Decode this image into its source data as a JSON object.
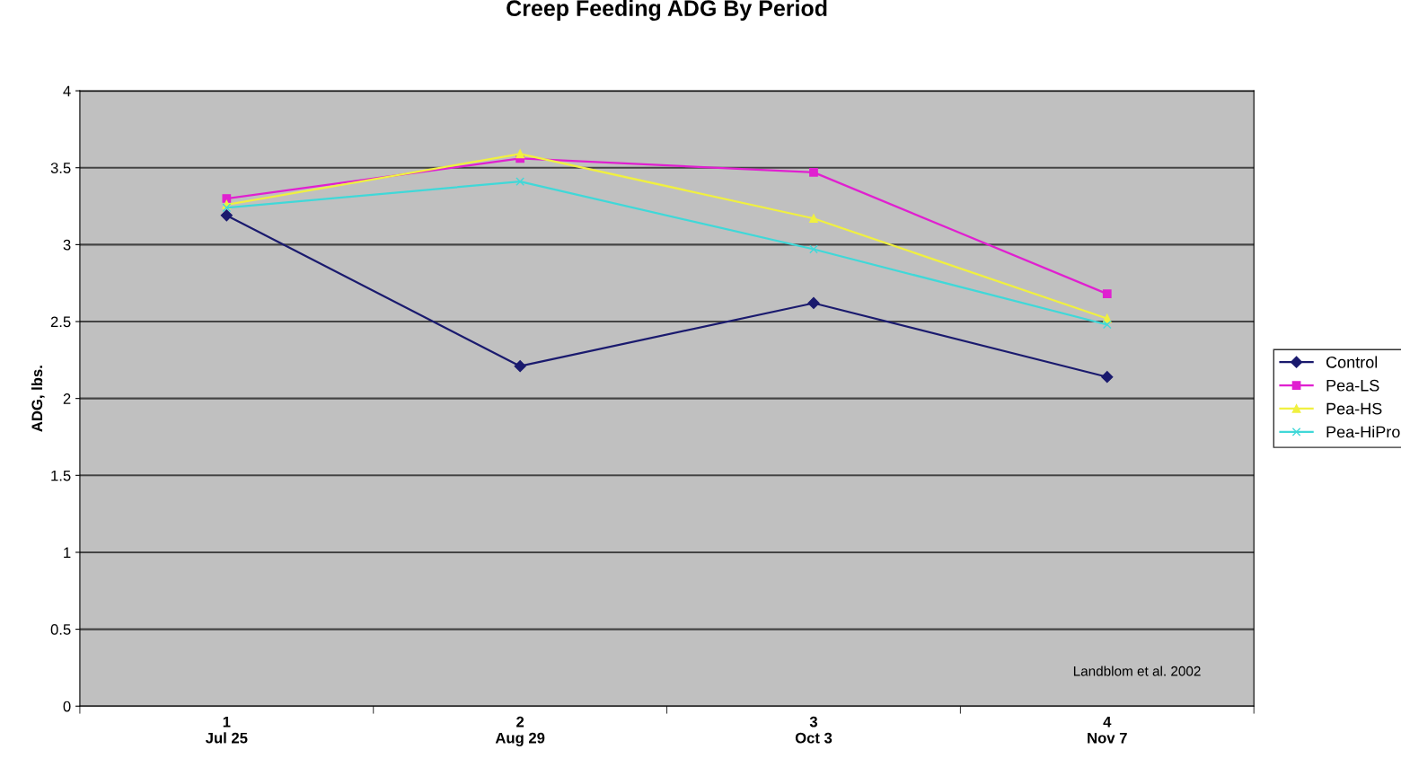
{
  "chart_data": {
    "type": "line",
    "title": "Creep Feeding ADG By Period",
    "ylabel": "ADG, lbs.",
    "categories": [
      "1\nJul 25",
      "2\nAug 29",
      "3\nOct 3",
      "4\nNov 7"
    ],
    "series": [
      {
        "name": "Control",
        "color": "#1a1a6e",
        "marker": "diamond",
        "values": [
          3.19,
          2.21,
          2.62,
          2.14
        ]
      },
      {
        "name": "Pea-LS",
        "color": "#e020d0",
        "marker": "square",
        "values": [
          3.3,
          3.56,
          3.47,
          2.68
        ]
      },
      {
        "name": "Pea-HS",
        "color": "#f0f040",
        "marker": "triangle",
        "values": [
          3.26,
          3.59,
          3.17,
          2.52
        ]
      },
      {
        "name": "Pea-HiPro",
        "color": "#40d8d8",
        "marker": "cross",
        "values": [
          3.24,
          3.41,
          2.97,
          2.48
        ]
      }
    ],
    "ylim": [
      0,
      4
    ],
    "yticks": [
      0,
      0.5,
      1,
      1.5,
      2,
      2.5,
      3,
      3.5,
      4
    ],
    "grid": "y",
    "legend": "right",
    "annotations": [
      "Landblom et al. 2002"
    ]
  }
}
